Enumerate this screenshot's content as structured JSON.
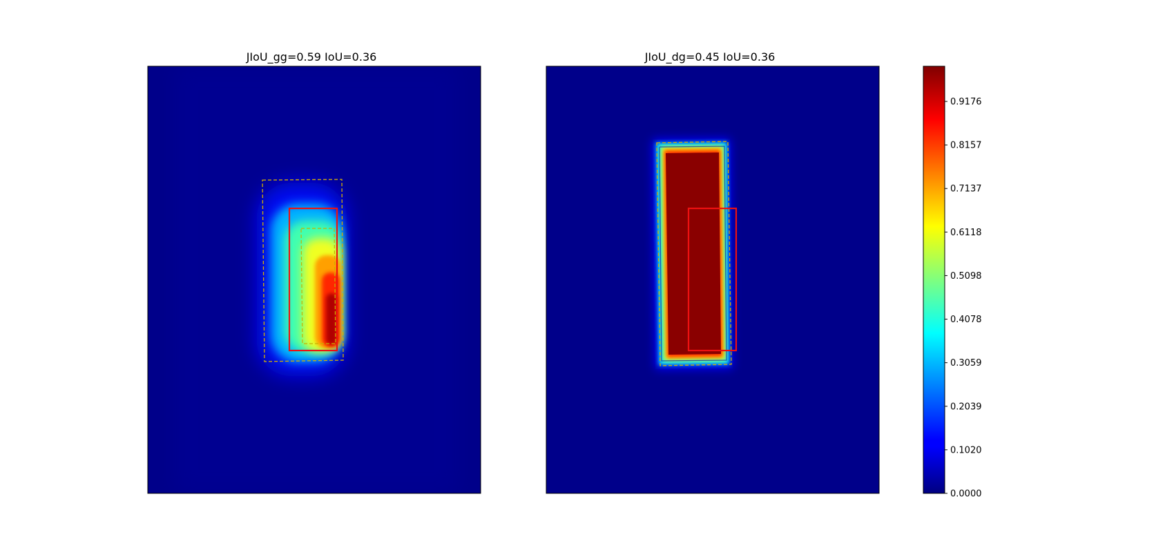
{
  "chart_data": [
    {
      "type": "heatmap",
      "title": "JIoU_gg=0.59 IoU=0.36",
      "colormap": "jet",
      "value_range": [
        0,
        1
      ],
      "heat_region": {
        "peak_value": 1.0,
        "falloff": "smooth",
        "peak_location": "lower-right inside boxes"
      },
      "boxes": [
        {
          "style": "red-solid"
        },
        {
          "style": "yellow-dashed-outer"
        },
        {
          "style": "yellow-dashed-inner"
        }
      ]
    },
    {
      "type": "heatmap",
      "title": "JIoU_dg=0.45 IoU=0.36",
      "colormap": "jet",
      "value_range": [
        0,
        1
      ],
      "heat_region": {
        "peak_value": 1.0,
        "falloff": "sharp",
        "peak_location": "fills dashed box"
      },
      "boxes": [
        {
          "style": "red-solid"
        },
        {
          "style": "yellow-dashed"
        }
      ]
    }
  ],
  "colorbar": {
    "ticks": [
      "0.0000",
      "0.1020",
      "0.2039",
      "0.3059",
      "0.4078",
      "0.5098",
      "0.6118",
      "0.7137",
      "0.8157",
      "0.9176"
    ],
    "tick_values": [
      0.0,
      0.102,
      0.2039,
      0.3059,
      0.4078,
      0.5098,
      0.6118,
      0.7137,
      0.8157,
      0.9176
    ],
    "range": [
      0,
      1.0
    ],
    "colors": [
      "#000080",
      "#0000ff",
      "#00ffff",
      "#ffff00",
      "#ff0000",
      "#800000"
    ]
  }
}
